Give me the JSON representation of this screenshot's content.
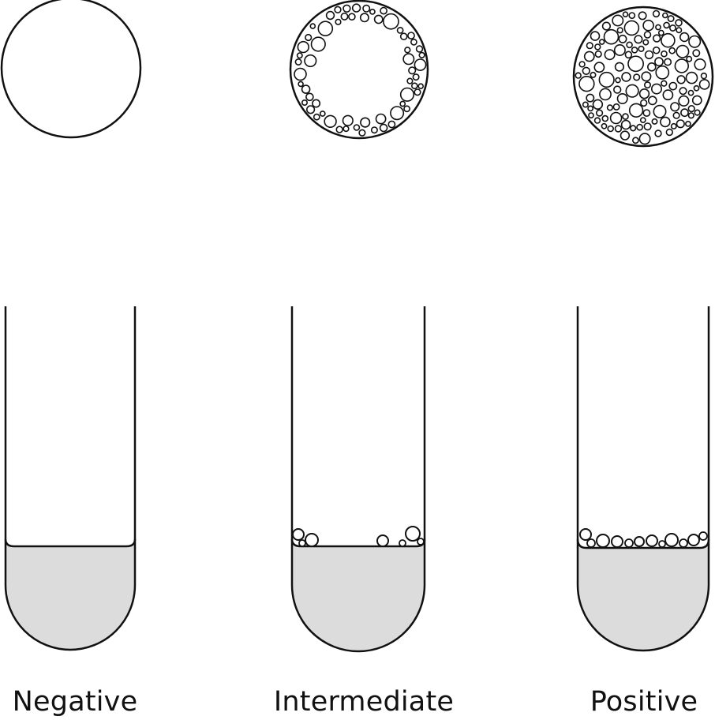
{
  "panels": [
    {
      "label": "Negative",
      "level": "none"
    },
    {
      "label": "Intermediate",
      "level": "partial"
    },
    {
      "label": "Positive",
      "level": "full"
    }
  ],
  "colors": {
    "stroke": "#111111",
    "liquid": "#dcdcdc",
    "background": "#ffffff"
  }
}
